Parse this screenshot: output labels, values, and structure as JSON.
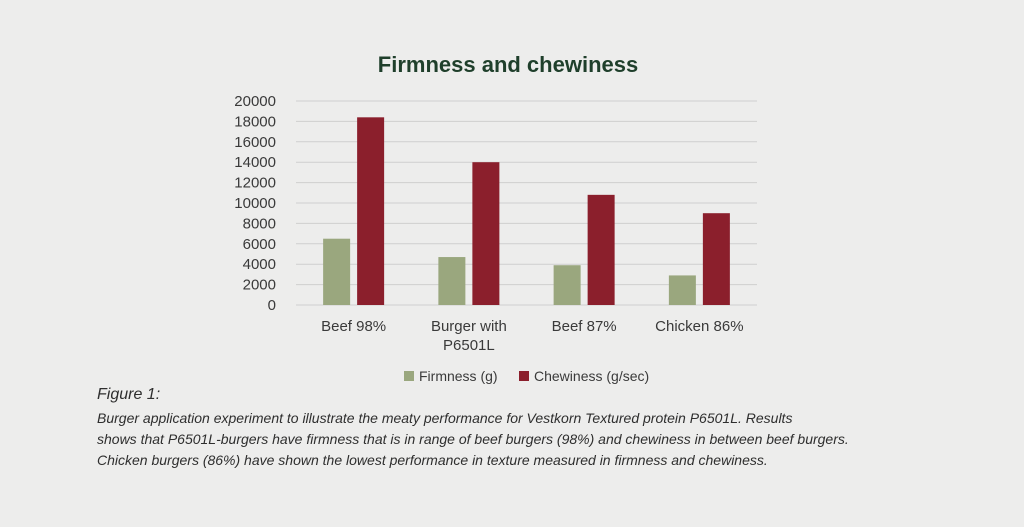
{
  "chart_data": {
    "type": "bar",
    "title": "Firmness and chewiness",
    "categories": [
      [
        "Beef 98%"
      ],
      [
        "Burger with",
        "P6501L"
      ],
      [
        "Beef 87%"
      ],
      [
        "Chicken 86%"
      ]
    ],
    "series": [
      {
        "name": "Firmness (g)",
        "values": [
          6500,
          4700,
          3900,
          2900
        ],
        "color": "#9aa77e"
      },
      {
        "name": "Chewiness (g/sec)",
        "values": [
          18400,
          14000,
          10800,
          9000
        ],
        "color": "#8b1f2c"
      }
    ],
    "ylim": [
      0,
      20000
    ],
    "yticks": [
      "0",
      "2000",
      "4000",
      "6000",
      "8000",
      "10000",
      "12000",
      "14000",
      "16000",
      "18000",
      "20000"
    ],
    "grid": true,
    "legend": "bottom"
  },
  "caption": {
    "label": "Figure 1:",
    "lines": [
      "Burger application experiment to illustrate the meaty performance for Vestkorn Textured protein P6501L. Results",
      "shows that P6501L-burgers have firmness that is in range of beef burgers (98%) and chewiness in between beef burgers.",
      "Chicken burgers (86%) have shown the lowest performance in texture measured in firmness and chewiness."
    ]
  }
}
